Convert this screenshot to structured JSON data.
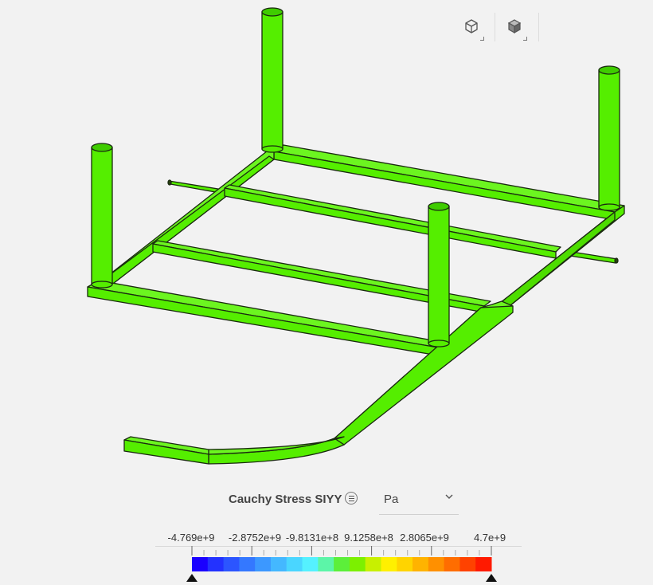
{
  "toolbar": {
    "buttons": [
      {
        "name": "view-wireframe-button",
        "icon": "wireframe-cube-icon"
      },
      {
        "name": "view-solid-button",
        "icon": "solid-cube-icon"
      }
    ]
  },
  "model": {
    "color": "#55ee00",
    "edge_color": "#1a2a10"
  },
  "legend": {
    "title": "Cauchy Stress SIYY",
    "unit": "Pa",
    "labels": [
      "-4.769e+9",
      "-2.8752e+9",
      "-9.8131e+8",
      "9.1258e+8",
      "2.8065e+9",
      "4.7e+9"
    ],
    "colors": [
      "#1a00ff",
      "#2332ff",
      "#2c55ff",
      "#3478ff",
      "#3c98ff",
      "#44b8ff",
      "#4ad6ff",
      "#55f1ff",
      "#5cf5a8",
      "#5cef3a",
      "#7cf000",
      "#c8f000",
      "#fff000",
      "#ffd400",
      "#ffb300",
      "#ff9000",
      "#ff6d00",
      "#ff4200",
      "#ff1a00"
    ]
  }
}
